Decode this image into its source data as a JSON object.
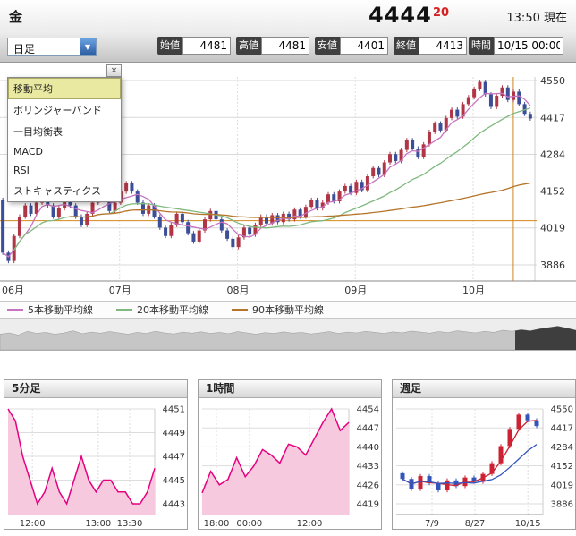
{
  "header": {
    "symbol": "金",
    "price": "4444",
    "change": "20",
    "current_time": "13:50 現在"
  },
  "toolbar": {
    "period": {
      "value": "日足",
      "arrow": "▼"
    },
    "fields": [
      {
        "label": "始値",
        "value": "4481"
      },
      {
        "label": "高値",
        "value": "4481"
      },
      {
        "label": "安値",
        "value": "4401"
      },
      {
        "label": "終値",
        "value": "4413"
      },
      {
        "label": "時間",
        "value": "10/15 00:00"
      }
    ]
  },
  "indicator_menu": {
    "close_label": "×",
    "items": [
      {
        "label": "移動平均",
        "selected": true
      },
      {
        "label": "ボリンジャーバンド",
        "selected": false
      },
      {
        "label": "一目均衡表",
        "selected": false
      },
      {
        "label": "MACD",
        "selected": false
      },
      {
        "label": "RSI",
        "selected": false
      },
      {
        "label": "ストキャスティクス",
        "selected": false
      }
    ]
  },
  "legend": [
    {
      "label": "5本移動平均線",
      "color": "#c873c0"
    },
    {
      "label": "20本移動平均線",
      "color": "#7fb97f"
    },
    {
      "label": "90本移動平均線",
      "color": "#b5742a"
    }
  ],
  "colors": {
    "up": "#b03545",
    "down": "#3c4e97",
    "ma5": "#c873c0",
    "ma20": "#7fb97f",
    "ma90": "#b5742a",
    "price_line": "#d4881c",
    "marker": "#cc8822",
    "line_pink": "#e5007f",
    "area_pink": "#f7c9de",
    "mini_red": "#cc2233",
    "mini_blue": "#3355bb"
  },
  "chart_data": [
    {
      "type": "candlestick",
      "name": "daily-main",
      "title": "日足",
      "y_ticks": [
        4550,
        4417,
        4284,
        4152,
        4019,
        3886
      ],
      "x_ticks": [
        "06月",
        "07月",
        "08月",
        "09月",
        "10月"
      ],
      "month_start_idx": [
        0,
        21,
        42,
        63,
        84
      ],
      "first_open": 4120,
      "closes": [
        3930,
        3900,
        3990,
        4060,
        4100,
        4070,
        4110,
        4140,
        4100,
        4060,
        4090,
        4130,
        4100,
        4060,
        4030,
        4070,
        4110,
        4150,
        4120,
        4080,
        4110,
        4150,
        4180,
        4150,
        4110,
        4070,
        4100,
        4060,
        4020,
        3990,
        4030,
        4070,
        4040,
        4000,
        3970,
        4010,
        4050,
        4080,
        4050,
        4010,
        3980,
        3950,
        3985,
        4020,
        3995,
        4030,
        4060,
        4035,
        4065,
        4040,
        4070,
        4050,
        4085,
        4060,
        4095,
        4120,
        4090,
        4110,
        4140,
        4115,
        4150,
        4170,
        4145,
        4185,
        4155,
        4205,
        4235,
        4210,
        4255,
        4285,
        4260,
        4300,
        4335,
        4305,
        4275,
        4320,
        4365,
        4395,
        4370,
        4415,
        4445,
        4420,
        4465,
        4490,
        4520,
        4545,
        4500,
        4455,
        4495,
        4525,
        4480,
        4510,
        4465,
        4430,
        4413
      ],
      "price_line": 4045,
      "marker_index": 91
    },
    {
      "type": "area",
      "name": "5min",
      "title": "5分足",
      "y_ticks": [
        4451,
        4449,
        4447,
        4445,
        4443
      ],
      "x_ticks": [
        {
          "label": "12:00",
          "f": 0.17
        },
        {
          "label": "13:00",
          "f": 0.63
        },
        {
          "label": "13:30",
          "f": 0.85
        }
      ],
      "values": [
        4451,
        4450,
        4447,
        4445,
        4443,
        4444,
        4446,
        4444,
        4443,
        4445,
        4447,
        4445,
        4444,
        4445,
        4445,
        4444,
        4444,
        4443,
        4443,
        4444,
        4446
      ]
    },
    {
      "type": "area",
      "name": "1hour",
      "title": "1時間",
      "y_ticks": [
        4454,
        4447,
        4440,
        4433,
        4426,
        4419
      ],
      "x_ticks": [
        {
          "label": "18:00",
          "f": 0.1
        },
        {
          "label": "00:00",
          "f": 0.33
        },
        {
          "label": "12:00",
          "f": 0.75
        }
      ],
      "values": [
        4423,
        4431,
        4426,
        4428,
        4436,
        4429,
        4433,
        4439,
        4437,
        4434,
        4441,
        4440,
        4437,
        4443,
        4449,
        4454,
        4446,
        4449
      ]
    },
    {
      "type": "candlestick",
      "name": "weekly",
      "title": "週足",
      "y_ticks": [
        4550,
        4417,
        4284,
        4152,
        4019,
        3886
      ],
      "x_ticks": [
        {
          "label": "7/9",
          "f": 0.25
        },
        {
          "label": "8/27",
          "f": 0.55
        },
        {
          "label": "10/15",
          "f": 0.92
        }
      ],
      "first_open": 4100,
      "closes": [
        4060,
        3990,
        4080,
        4030,
        3980,
        4050,
        4010,
        4070,
        4040,
        4095,
        4170,
        4290,
        4410,
        4510,
        4470,
        4430
      ]
    }
  ],
  "minimap": {
    "values": [
      0.55,
      0.6,
      0.52,
      0.66,
      0.58,
      0.62,
      0.55,
      0.6,
      0.68,
      0.57,
      0.63,
      0.59,
      0.65,
      0.6,
      0.55,
      0.62,
      0.58,
      0.66,
      0.6,
      0.56,
      0.63,
      0.59,
      0.64,
      0.58,
      0.62,
      0.57,
      0.65,
      0.6,
      0.55,
      0.61,
      0.58,
      0.64,
      0.59,
      0.62,
      0.56,
      0.6,
      0.65,
      0.58,
      0.63,
      0.6,
      0.66,
      0.62,
      0.58,
      0.64,
      0.6,
      0.67,
      0.63,
      0.59,
      0.65,
      0.61,
      0.68,
      0.64,
      0.6,
      0.66,
      0.62,
      0.7,
      0.66,
      0.72,
      0.68,
      0.75,
      0.8,
      0.85,
      0.78,
      0.7
    ]
  }
}
